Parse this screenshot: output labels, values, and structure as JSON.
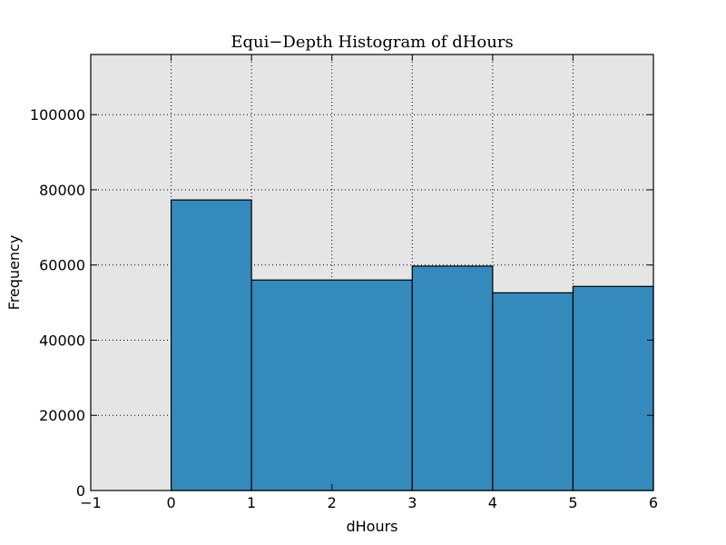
{
  "chart_data": {
    "type": "bar",
    "title": "Equi−Depth Histogram of dHours",
    "xlabel": "dHours",
    "ylabel": "Frequency",
    "xlim": [
      -1,
      6
    ],
    "ylim": [
      0,
      116000
    ],
    "x_ticks": [
      -1,
      0,
      1,
      2,
      3,
      4,
      5,
      6
    ],
    "x_tick_labels": [
      "−1",
      "0",
      "1",
      "2",
      "3",
      "4",
      "5",
      "6"
    ],
    "y_ticks": [
      0,
      20000,
      40000,
      60000,
      80000,
      100000
    ],
    "y_tick_labels": [
      "0",
      "20000",
      "40000",
      "60000",
      "80000",
      "100000"
    ],
    "bins": [
      {
        "x0": 0,
        "x1": 1,
        "value": 77300
      },
      {
        "x0": 1,
        "x1": 3,
        "value": 56000
      },
      {
        "x0": 3,
        "x1": 4,
        "value": 59700
      },
      {
        "x0": 4,
        "x1": 5,
        "value": 52600
      },
      {
        "x0": 5,
        "x1": 6,
        "value": 54300
      }
    ],
    "bar_color": "#348abd",
    "plot_background": "#e5e5e5",
    "grid": true,
    "legend": "none"
  }
}
